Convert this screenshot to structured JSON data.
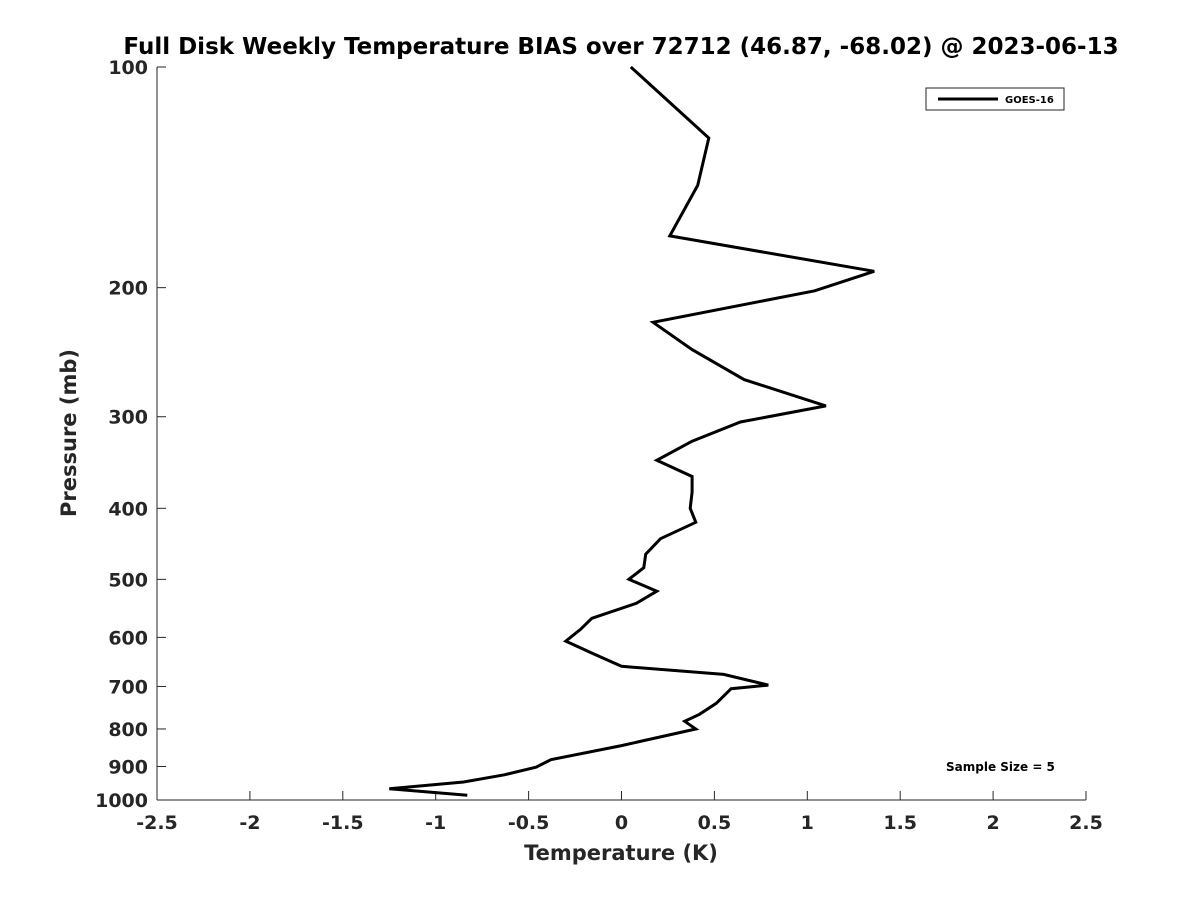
{
  "chart_data": {
    "type": "line",
    "title": "Full Disk Weekly Temperature BIAS over 72712 (46.87, -68.02) @ 2023-06-13",
    "xlabel": "Temperature (K)",
    "ylabel": "Pressure (mb)",
    "xlim": [
      -2.5,
      2.5
    ],
    "ylim": [
      100,
      1000
    ],
    "y_scale": "log",
    "y_reversed": true,
    "x_ticks": [
      "-2.5",
      "-2",
      "-1.5",
      "-1",
      "-0.5",
      "0",
      "0.5",
      "1",
      "1.5",
      "2",
      "2.5"
    ],
    "y_ticks": [
      "100",
      "200",
      "300",
      "400",
      "500",
      "600",
      "700",
      "800",
      "900",
      "1000"
    ],
    "grid": false,
    "legend_position": "top-right",
    "series": [
      {
        "name": "GOES-16",
        "color": "#000000",
        "points": [
          [
            0.05,
            100
          ],
          [
            0.47,
            125
          ],
          [
            0.41,
            145
          ],
          [
            0.26,
            170
          ],
          [
            1.36,
            190
          ],
          [
            1.04,
            202
          ],
          [
            0.17,
            223
          ],
          [
            0.38,
            243
          ],
          [
            0.66,
            267
          ],
          [
            1.1,
            290
          ],
          [
            0.64,
            305
          ],
          [
            0.38,
            324
          ],
          [
            0.19,
            344
          ],
          [
            0.38,
            362
          ],
          [
            0.38,
            380
          ],
          [
            0.37,
            400
          ],
          [
            0.4,
            418
          ],
          [
            0.21,
            440
          ],
          [
            0.13,
            462
          ],
          [
            0.12,
            482
          ],
          [
            0.04,
            500
          ],
          [
            0.19,
            519
          ],
          [
            0.08,
            539
          ],
          [
            -0.16,
            565
          ],
          [
            -0.22,
            585
          ],
          [
            -0.3,
            607
          ],
          [
            -0.15,
            632
          ],
          [
            0.0,
            657
          ],
          [
            0.55,
            674
          ],
          [
            0.79,
            697
          ],
          [
            0.59,
            705
          ],
          [
            0.51,
            738
          ],
          [
            0.42,
            764
          ],
          [
            0.34,
            781
          ],
          [
            0.4,
            800
          ],
          [
            0.0,
            843
          ],
          [
            -0.38,
            881
          ],
          [
            -0.46,
            902
          ],
          [
            -0.63,
            924
          ],
          [
            -0.85,
            945
          ],
          [
            -1.25,
            965
          ],
          [
            -0.83,
            985
          ]
        ]
      }
    ],
    "annotations": [
      "Sample Size = 5"
    ]
  }
}
